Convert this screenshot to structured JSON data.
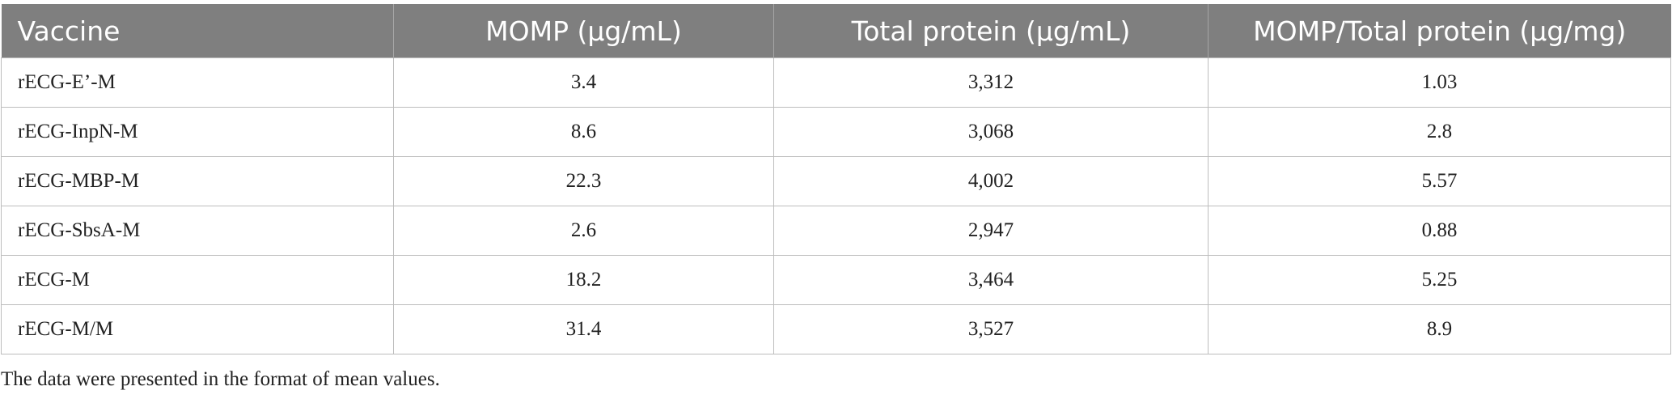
{
  "table": {
    "header": [
      "Vaccine",
      "MOMP (μg/mL)",
      "Total protein (μg/mL)",
      "MOMP/Total protein (μg/mg)"
    ],
    "rows": [
      [
        "rECG-E’-M",
        "3.4",
        "3,312",
        "1.03"
      ],
      [
        "rECG-InpN-M",
        "8.6",
        "3,068",
        "2.8"
      ],
      [
        "rECG-MBP-M",
        "22.3",
        "4,002",
        "5.57"
      ],
      [
        "rECG-SbsA-M",
        "2.6",
        "2,947",
        "0.88"
      ],
      [
        "rECG-M",
        "18.2",
        "3,464",
        "5.25"
      ],
      [
        "rECG-M/M",
        "31.4",
        "3,527",
        "8.9"
      ]
    ],
    "footnote": "The data were presented in the format of mean values."
  }
}
